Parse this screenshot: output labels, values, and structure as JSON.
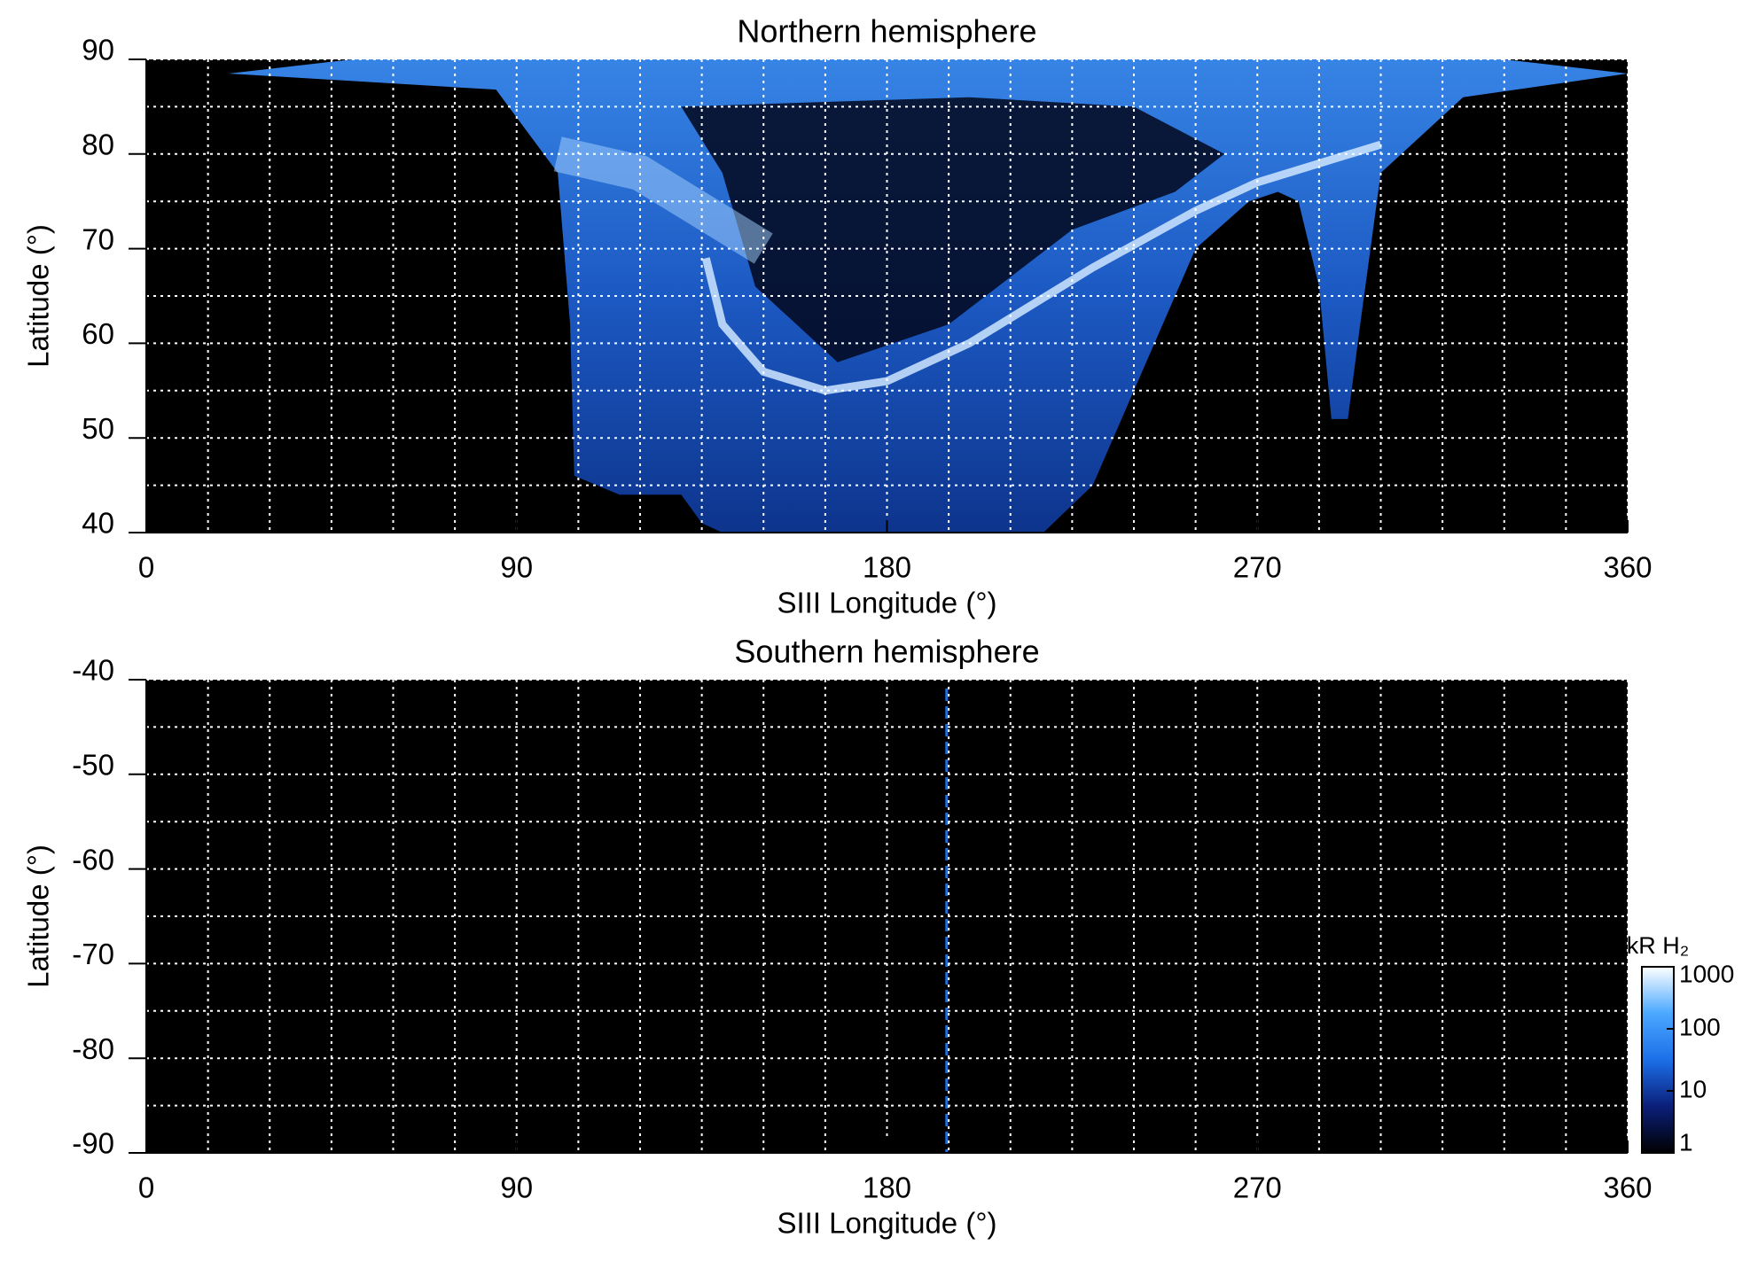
{
  "chart_data": [
    {
      "type": "heatmap",
      "title": "Northern hemisphere",
      "xlabel": "SIII Longitude (°)",
      "ylabel": "Latitude (°)",
      "xlim": [
        0,
        360
      ],
      "xticks": [
        0,
        90,
        180,
        270,
        360
      ],
      "ylim": [
        40,
        90
      ],
      "yticks": [
        40,
        50,
        60,
        70,
        80,
        90
      ],
      "grid": true,
      "grid_x": [
        0,
        15,
        30,
        45,
        60,
        75,
        90,
        105,
        120,
        135,
        150,
        165,
        180,
        195,
        210,
        225,
        240,
        255,
        270,
        285,
        300,
        315,
        330,
        345,
        360
      ],
      "grid_y": [
        40,
        45,
        50,
        55,
        60,
        65,
        70,
        75,
        80,
        85,
        90
      ]
    },
    {
      "type": "heatmap",
      "title": "Southern hemisphere",
      "xlabel": "SIII Longitude (°)",
      "ylabel": "Latitude (°)",
      "xlim": [
        0,
        360
      ],
      "xticks": [
        0,
        90,
        180,
        270,
        360
      ],
      "ylim": [
        -90,
        -40
      ],
      "yticks": [
        -90,
        -80,
        -70,
        -60,
        -50,
        -40
      ],
      "grid": true,
      "grid_x": [
        0,
        15,
        30,
        45,
        60,
        75,
        90,
        105,
        120,
        135,
        150,
        165,
        180,
        195,
        210,
        225,
        240,
        255,
        270,
        285,
        300,
        315,
        330,
        345,
        360
      ],
      "grid_y": [
        -90,
        -85,
        -80,
        -75,
        -70,
        -65,
        -60,
        -55,
        -50,
        -45,
        -40
      ],
      "colorbar": {
        "label": "kR H₂",
        "log": true,
        "lim": [
          1,
          1000
        ],
        "ticks": [
          1,
          10,
          100,
          1000
        ],
        "colors": [
          "#000000",
          "#0b1f7a",
          "#1c6fe8",
          "#4aa8ff",
          "#ffffff"
        ]
      }
    }
  ]
}
